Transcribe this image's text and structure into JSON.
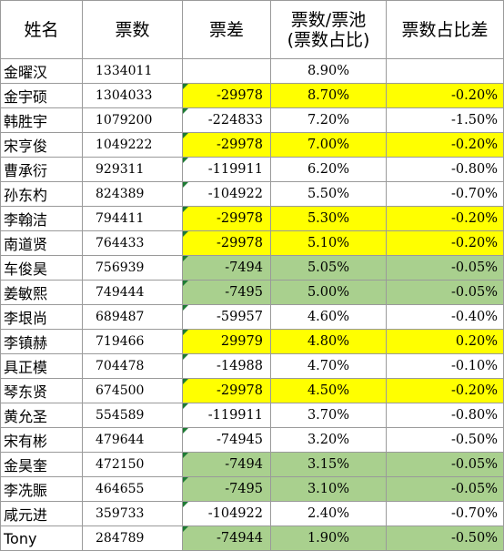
{
  "headers": [
    "姓名",
    "票数",
    "票差",
    "票数/票池(票数占比)",
    "票数占比差"
  ],
  "header_lines": {
    "h3_line1": "票数/票池",
    "h3_line2": "(票数占比)"
  },
  "colors": {
    "yellow": "#ffff00",
    "green": "#a9d08e",
    "grid": "#9a9a9a",
    "indicator": "#1e7b34"
  },
  "rows": [
    {
      "name": "金曜汉",
      "votes": "1334011",
      "diff": "",
      "share": "8.90%",
      "share_diff": "",
      "hl": ""
    },
    {
      "name": "金宇硕",
      "votes": "1304033",
      "diff": "-29978",
      "share": "8.70%",
      "share_diff": "-0.20%",
      "hl": "yellow"
    },
    {
      "name": "韩胜宇",
      "votes": "1079200",
      "diff": "-224833",
      "share": "7.20%",
      "share_diff": "-1.50%",
      "hl": ""
    },
    {
      "name": "宋亨俊",
      "votes": "1049222",
      "diff": "-29978",
      "share": "7.00%",
      "share_diff": "-0.20%",
      "hl": "yellow"
    },
    {
      "name": "曹承衍",
      "votes": "929311",
      "diff": "-119911",
      "share": "6.20%",
      "share_diff": "-0.80%",
      "hl": ""
    },
    {
      "name": "孙东杓",
      "votes": "824389",
      "diff": "-104922",
      "share": "5.50%",
      "share_diff": "-0.70%",
      "hl": ""
    },
    {
      "name": "李翰洁",
      "votes": "794411",
      "diff": "-29978",
      "share": "5.30%",
      "share_diff": "-0.20%",
      "hl": "yellow"
    },
    {
      "name": "南道贤",
      "votes": "764433",
      "diff": "-29978",
      "share": "5.10%",
      "share_diff": "-0.20%",
      "hl": "yellow"
    },
    {
      "name": "车俊昊",
      "votes": "756939",
      "diff": "-7494",
      "share": "5.05%",
      "share_diff": "-0.05%",
      "hl": "green"
    },
    {
      "name": "姜敏熙",
      "votes": "749444",
      "diff": "-7495",
      "share": "5.00%",
      "share_diff": "-0.05%",
      "hl": "green"
    },
    {
      "name": "李垠尚",
      "votes": "689487",
      "diff": "-59957",
      "share": "4.60%",
      "share_diff": "-0.40%",
      "hl": ""
    },
    {
      "name": "李镇赫",
      "votes": "719466",
      "diff": "29979",
      "share": "4.80%",
      "share_diff": "0.20%",
      "hl": "yellow"
    },
    {
      "name": "具正模",
      "votes": "704478",
      "diff": "-14988",
      "share": "4.70%",
      "share_diff": "-0.10%",
      "hl": ""
    },
    {
      "name": "琴东贤",
      "votes": "674500",
      "diff": "-29978",
      "share": "4.50%",
      "share_diff": "-0.20%",
      "hl": "yellow"
    },
    {
      "name": "黄允圣",
      "votes": "554589",
      "diff": "-119911",
      "share": "3.70%",
      "share_diff": "-0.80%",
      "hl": ""
    },
    {
      "name": "宋有彬",
      "votes": "479644",
      "diff": "-74945",
      "share": "3.20%",
      "share_diff": "-0.50%",
      "hl": ""
    },
    {
      "name": "金昊奎",
      "votes": "472150",
      "diff": "-7494",
      "share": "3.15%",
      "share_diff": "-0.05%",
      "hl": "green"
    },
    {
      "name": "李冼賑",
      "votes": "464655",
      "diff": "-7495",
      "share": "3.10%",
      "share_diff": "-0.05%",
      "hl": "green"
    },
    {
      "name": "咸元进",
      "votes": "359733",
      "diff": "-104922",
      "share": "2.40%",
      "share_diff": "-0.70%",
      "hl": ""
    },
    {
      "name": "Tony",
      "votes": "284789",
      "diff": "-74944",
      "share": "1.90%",
      "share_diff": "-0.50%",
      "hl": "green"
    }
  ]
}
